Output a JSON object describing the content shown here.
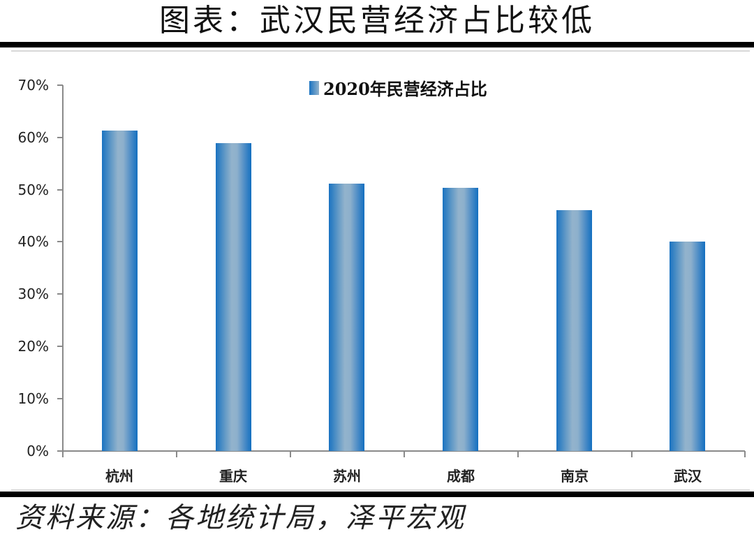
{
  "header": {
    "title": "图表：武汉民营经济占比较低"
  },
  "footer": {
    "source": "资料来源：各地统计局，泽平宏观"
  },
  "legend": {
    "label": "2020年民营经济占比"
  },
  "yaxis": {
    "ticks": [
      "0%",
      "10%",
      "20%",
      "30%",
      "40%",
      "50%",
      "60%",
      "70%"
    ]
  },
  "xaxis": {
    "categories": [
      "杭州",
      "重庆",
      "苏州",
      "成都",
      "南京",
      "武汉"
    ]
  },
  "colors": {
    "bar_edge": "#1a73c1",
    "bar_center": "#93b3cc",
    "axis": "#8a8a8a"
  },
  "chart_data": {
    "type": "bar",
    "title": "图表：武汉民营经济占比较低",
    "categories": [
      "杭州",
      "重庆",
      "苏州",
      "成都",
      "南京",
      "武汉"
    ],
    "series": [
      {
        "name": "2020年民营经济占比",
        "values": [
          61.3,
          58.9,
          51.2,
          50.4,
          46.1,
          40.1
        ]
      }
    ],
    "xlabel": "",
    "ylabel": "",
    "ylim": [
      0,
      70
    ],
    "yticks": [
      "0%",
      "10%",
      "20%",
      "30%",
      "40%",
      "50%",
      "60%",
      "70%"
    ],
    "unit": "%",
    "grid": false,
    "legend_position": "top"
  }
}
